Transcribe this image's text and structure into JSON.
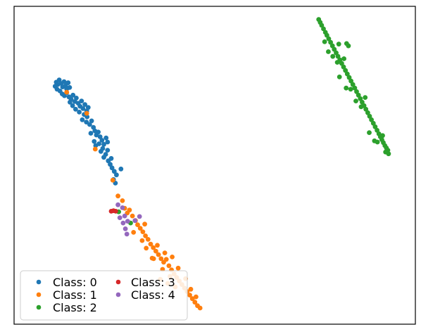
{
  "chart_data": {
    "type": "scatter",
    "title": "",
    "xlabel": "",
    "ylabel": "",
    "xlim": [
      0,
      100
    ],
    "ylim": [
      0,
      100
    ],
    "axes_ticks": "none",
    "grid": false,
    "legend_placement": "lower-left",
    "legend_columns": 2,
    "series": [
      {
        "name": "Class: 0",
        "color": "#1f77b4",
        "points": [
          [
            6.8,
            78.2
          ],
          [
            7.2,
            77.4
          ],
          [
            7.6,
            79.0
          ],
          [
            8.1,
            77.8
          ],
          [
            8.5,
            76.6
          ],
          [
            8.9,
            78.4
          ],
          [
            9.3,
            77.0
          ],
          [
            9.6,
            75.9
          ],
          [
            10.0,
            78.0
          ],
          [
            10.4,
            76.4
          ],
          [
            6.5,
            76.8
          ],
          [
            7.0,
            75.8
          ],
          [
            7.8,
            75.2
          ],
          [
            8.4,
            74.2
          ],
          [
            9.0,
            73.6
          ],
          [
            9.6,
            74.6
          ],
          [
            10.2,
            73.2
          ],
          [
            10.8,
            72.4
          ],
          [
            11.3,
            73.8
          ],
          [
            11.8,
            71.6
          ],
          [
            12.2,
            72.8
          ],
          [
            12.7,
            71.0
          ],
          [
            13.2,
            70.0
          ],
          [
            13.6,
            71.8
          ],
          [
            14.0,
            69.2
          ],
          [
            14.5,
            70.6
          ],
          [
            15.0,
            68.4
          ],
          [
            15.4,
            69.6
          ],
          [
            12.0,
            69.0
          ],
          [
            11.2,
            70.2
          ],
          [
            10.5,
            71.4
          ],
          [
            13.0,
            68.0
          ],
          [
            14.3,
            67.2
          ],
          [
            15.1,
            66.4
          ],
          [
            13.8,
            65.4
          ],
          [
            14.9,
            64.6
          ],
          [
            15.8,
            63.8
          ],
          [
            16.3,
            65.0
          ],
          [
            16.8,
            62.8
          ],
          [
            17.2,
            61.6
          ],
          [
            16.1,
            60.8
          ],
          [
            17.6,
            60.2
          ],
          [
            18.1,
            61.2
          ],
          [
            18.6,
            59.6
          ],
          [
            19.1,
            58.4
          ],
          [
            18.3,
            57.2
          ],
          [
            17.4,
            56.6
          ],
          [
            19.6,
            57.0
          ],
          [
            20.2,
            59.2
          ],
          [
            20.6,
            57.8
          ],
          [
            19.3,
            55.6
          ],
          [
            18.8,
            54.6
          ],
          [
            20.1,
            53.6
          ],
          [
            19.6,
            52.6
          ],
          [
            20.8,
            51.4
          ],
          [
            21.3,
            50.2
          ],
          [
            21.8,
            49.0
          ],
          [
            22.4,
            47.8
          ],
          [
            23.0,
            46.6
          ],
          [
            24.2,
            48.6
          ],
          [
            20.6,
            55.0
          ],
          [
            17.0,
            58.0
          ],
          [
            21.6,
            52.2
          ],
          [
            22.2,
            45.0
          ],
          [
            22.7,
            43.8
          ]
        ]
      },
      {
        "name": "Class: 1",
        "color": "#ff7f0e",
        "points": [
          [
            9.6,
            74.8
          ],
          [
            15.0,
            67.6
          ],
          [
            17.3,
            55.4
          ],
          [
            22.0,
            44.8
          ],
          [
            24.6,
            37.8
          ],
          [
            25.2,
            35.2
          ],
          [
            25.9,
            33.6
          ],
          [
            26.5,
            34.6
          ],
          [
            27.3,
            32.6
          ],
          [
            28.1,
            31.0
          ],
          [
            28.7,
            29.6
          ],
          [
            29.4,
            28.4
          ],
          [
            30.1,
            27.2
          ],
          [
            30.8,
            25.8
          ],
          [
            31.5,
            24.6
          ],
          [
            32.2,
            23.0
          ],
          [
            32.9,
            21.8
          ],
          [
            33.6,
            20.6
          ],
          [
            34.3,
            19.4
          ],
          [
            35.0,
            18.0
          ],
          [
            35.7,
            16.8
          ],
          [
            36.4,
            17.8
          ],
          [
            37.1,
            15.6
          ],
          [
            37.8,
            14.2
          ],
          [
            38.5,
            12.8
          ],
          [
            39.2,
            11.6
          ],
          [
            39.9,
            10.4
          ],
          [
            40.6,
            9.2
          ],
          [
            41.3,
            8.0
          ],
          [
            42.0,
            6.8
          ],
          [
            42.7,
            5.6
          ],
          [
            43.4,
            4.4
          ],
          [
            44.1,
            3.2
          ],
          [
            44.8,
            2.0
          ],
          [
            45.5,
            1.2
          ],
          [
            34.0,
            22.6
          ],
          [
            36.0,
            20.0
          ],
          [
            38.0,
            18.6
          ],
          [
            33.0,
            18.0
          ],
          [
            35.4,
            14.4
          ],
          [
            31.0,
            21.6
          ],
          [
            32.6,
            18.2
          ],
          [
            37.4,
            12.0
          ],
          [
            39.6,
            14.8
          ],
          [
            41.6,
            11.2
          ],
          [
            36.8,
            9.6
          ],
          [
            34.8,
            11.0
          ],
          [
            38.8,
            8.4
          ],
          [
            43.0,
            7.6
          ],
          [
            44.4,
            5.0
          ],
          [
            27.6,
            27.0
          ],
          [
            29.9,
            24.2
          ],
          [
            30.6,
            29.8
          ],
          [
            23.4,
            39.4
          ]
        ]
      },
      {
        "name": "Class: 2",
        "color": "#2ca02c",
        "points": [
          [
            77.4,
            99.6
          ],
          [
            77.8,
            98.6
          ],
          [
            78.2,
            97.6
          ],
          [
            78.7,
            96.4
          ],
          [
            79.2,
            95.2
          ],
          [
            79.6,
            94.2
          ],
          [
            80.1,
            93.0
          ],
          [
            80.6,
            91.8
          ],
          [
            81.1,
            90.6
          ],
          [
            81.6,
            89.4
          ],
          [
            82.1,
            88.2
          ],
          [
            82.6,
            87.0
          ],
          [
            83.1,
            85.8
          ],
          [
            83.6,
            84.6
          ],
          [
            84.1,
            83.4
          ],
          [
            84.6,
            82.2
          ],
          [
            85.1,
            81.0
          ],
          [
            85.6,
            79.8
          ],
          [
            86.1,
            78.6
          ],
          [
            86.6,
            77.4
          ],
          [
            87.1,
            76.2
          ],
          [
            87.6,
            75.0
          ],
          [
            88.1,
            73.8
          ],
          [
            88.6,
            72.6
          ],
          [
            89.1,
            71.4
          ],
          [
            89.6,
            70.2
          ],
          [
            90.1,
            69.0
          ],
          [
            90.6,
            67.8
          ],
          [
            91.1,
            66.6
          ],
          [
            91.6,
            65.4
          ],
          [
            92.1,
            64.2
          ],
          [
            92.6,
            63.0
          ],
          [
            93.1,
            61.8
          ],
          [
            93.6,
            60.6
          ],
          [
            94.0,
            59.6
          ],
          [
            94.4,
            58.6
          ],
          [
            94.8,
            57.6
          ],
          [
            95.2,
            56.6
          ],
          [
            95.6,
            55.8
          ],
          [
            96.0,
            55.0
          ],
          [
            80.0,
            88.6
          ],
          [
            81.2,
            87.0
          ],
          [
            82.4,
            85.0
          ],
          [
            84.2,
            86.2
          ],
          [
            84.9,
            91.4
          ],
          [
            85.4,
            90.6
          ],
          [
            83.0,
            80.0
          ],
          [
            86.0,
            75.8
          ],
          [
            87.4,
            71.8
          ],
          [
            88.8,
            69.8
          ],
          [
            91.0,
            61.0
          ],
          [
            93.2,
            57.8
          ],
          [
            94.6,
            60.0
          ],
          [
            95.4,
            54.4
          ],
          [
            96.2,
            53.8
          ],
          [
            79.0,
            92.0
          ],
          [
            82.8,
            91.2
          ],
          [
            84.8,
            76.2
          ],
          [
            89.9,
            73.0
          ],
          [
            92.4,
            58.2
          ],
          [
            23.6,
            34.0
          ],
          [
            26.8,
            30.2
          ]
        ]
      },
      {
        "name": "Class: 3",
        "color": "#d62728",
        "points": [
          [
            21.6,
            34.2
          ],
          [
            22.2,
            34.4
          ],
          [
            22.8,
            34.2
          ]
        ]
      },
      {
        "name": "Class: 4",
        "color": "#9467bd",
        "points": [
          [
            23.4,
            36.4
          ],
          [
            24.6,
            35.4
          ],
          [
            25.2,
            32.6
          ],
          [
            23.9,
            32.0
          ],
          [
            26.0,
            30.8
          ],
          [
            29.2,
            32.4
          ],
          [
            25.4,
            28.2
          ],
          [
            25.8,
            26.4
          ],
          [
            28.0,
            31.0
          ],
          [
            24.8,
            30.2
          ]
        ]
      }
    ]
  }
}
